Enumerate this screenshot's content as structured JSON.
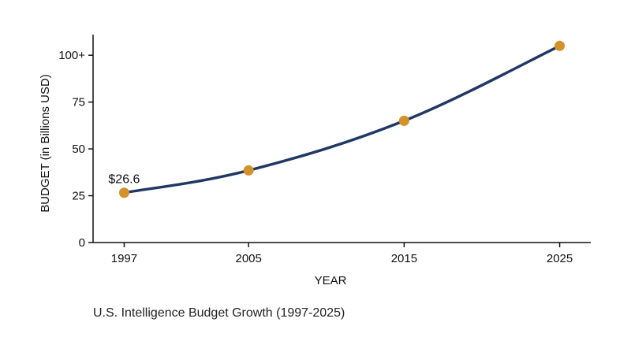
{
  "chart_data": {
    "type": "line",
    "title": "U.S. Intelligence Budget Growth (1997-2025)",
    "xlabel": "YEAR",
    "ylabel": "BUDGET (in Billions USD)",
    "x": [
      1997,
      2005,
      2015,
      2025
    ],
    "x_tick_labels": [
      "1997",
      "2005",
      "2015",
      "2025"
    ],
    "series": [
      {
        "values": [
          26.6,
          38.5,
          65,
          105
        ]
      }
    ],
    "y_ticks": [
      0,
      25,
      50,
      75,
      100
    ],
    "y_tick_labels": [
      "0",
      "25",
      "50",
      "75",
      "100+"
    ],
    "ylim": [
      0,
      111
    ],
    "xlim": [
      1995,
      2027
    ],
    "annotations": [
      {
        "x": 1997,
        "y": 26.6,
        "text": "$26.6"
      }
    ],
    "grid": false,
    "legend": "none",
    "colors": {
      "line": "#1f3864",
      "marker": "#d4922a",
      "axis": "#111111"
    }
  }
}
